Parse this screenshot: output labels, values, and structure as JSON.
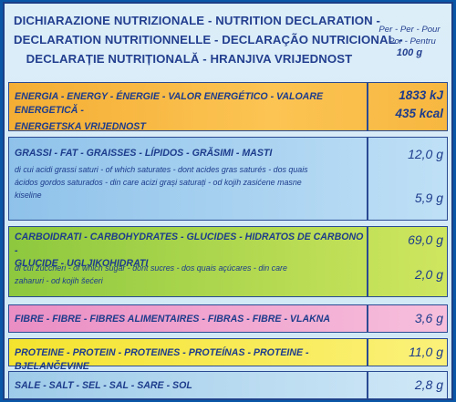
{
  "header": {
    "title_lines": [
      "DICHIARAZIONE NUTRIZIONALE - NUTRITION DECLARATION -",
      "DECLARATION NUTRITIONNELLE - DECLARAÇÃO NUTRICIONAL -",
      "DECLARAȚIE NUTRIȚIONALĂ - HRANJIVA  VRIJEDNOST"
    ],
    "per_lines": [
      "Per - Per - Pour",
      "- Por - Pentru"
    ],
    "per_qty": "100 g"
  },
  "rows": {
    "energy": {
      "label_lines": [
        "ENERGIA - ENERGY - ÉNERGIE - VALOR ENERGÉTICO - VALOARE ENERGETICĂ -",
        "ENERGETSKA VRIJEDNOST"
      ],
      "kj": "1833 kJ",
      "kcal": "435 kcal"
    },
    "fat": {
      "label": "GRASSI - FAT - GRAISSES - LÍPIDOS - GRĂSIMI - MASTI",
      "value": "12,0 g",
      "sub_lines": [
        "di cui acidi grassi saturi - of which saturates - dont acides gras saturés - dos quais",
        "ácidos gordos saturados - din care acizi grași saturați - od kojih zasićene masne",
        "kiseline"
      ],
      "sub_value": "5,9 g"
    },
    "carb": {
      "label_lines": [
        "CARBOIDRATI - CARBOHYDRATES - GLUCIDES - HIDRATOS DE CARBONO -",
        "GLUCIDE - UGLJIKOHIDRATI"
      ],
      "value": "69,0 g",
      "sub_lines": [
        "di cui zuccheri - of which sugar - dont sucres - dos quais açúcares - din care",
        "zaharuri - od kojih šećeri"
      ],
      "sub_value": "2,0 g"
    },
    "fibre": {
      "label": "FIBRE - FIBRE - FIBRES ALIMENTAIRES - FIBRAS - FIBRE - VLAKNA",
      "value": "3,6 g"
    },
    "protein": {
      "label": "PROTEINE - PROTEIN - PROTEINES - PROTEÍNAS - PROTEINE - BJELANČEVINE",
      "value": "11,0 g"
    },
    "salt": {
      "label": "SALE - SALT - SEL - SAL - SARE - SOL",
      "value": "2,8 g"
    }
  }
}
